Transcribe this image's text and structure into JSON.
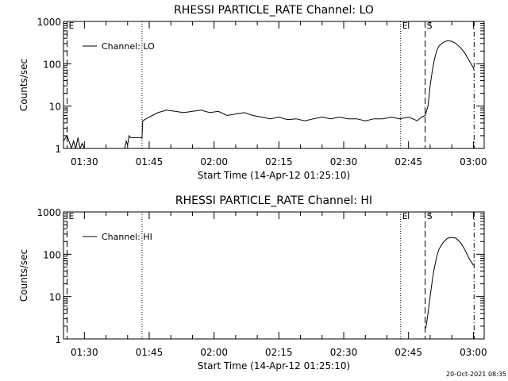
{
  "footer": {
    "timestamp": "20-Oct-2021 08:35"
  },
  "chart_data": [
    {
      "type": "line",
      "title": "RHESSI PARTICLE_RATE Channel: LO",
      "xlabel": "Start Time (14-Apr-12 01:25:10)",
      "ylabel": "Counts/sec",
      "y_scale": "log",
      "ylim": [
        1,
        1000
      ],
      "xlim": [
        "01:25:10",
        "03:02:30"
      ],
      "x_ticks": [
        "01:30",
        "01:45",
        "02:00",
        "02:15",
        "02:30",
        "02:45",
        "03:00"
      ],
      "y_ticks": [
        "1",
        "10",
        "100",
        "1000"
      ],
      "legend": {
        "label": "Channel: LO",
        "position": "top-left"
      },
      "markers": [
        {
          "label": "E",
          "time": "01:26:00",
          "style": "dashed"
        },
        {
          "label": "",
          "time": "01:43:20",
          "style": "dotted"
        },
        {
          "label": "E",
          "time": "02:43:10",
          "style": "dotted"
        },
        {
          "label": "S",
          "time": "02:48:50",
          "style": "dashed"
        },
        {
          "label": "",
          "time": "03:00:10",
          "style": "dashdot"
        }
      ],
      "series": [
        {
          "name": "Channel: LO",
          "x": [
            "01:25:10",
            "01:26:00",
            "01:27:00",
            "01:27:30",
            "01:28:00",
            "01:28:30",
            "01:29:00",
            "01:29:30",
            "01:30:00",
            "01:39:20",
            "01:39:40",
            "01:40:00",
            "01:40:20",
            "01:40:40",
            "01:41:00",
            "01:43:20",
            "01:43:30",
            "01:45:00",
            "01:47:00",
            "01:49:00",
            "01:51:00",
            "01:53:00",
            "01:55:00",
            "01:57:00",
            "01:59:00",
            "02:01:00",
            "02:03:00",
            "02:05:00",
            "02:07:00",
            "02:09:00",
            "02:11:00",
            "02:13:00",
            "02:15:00",
            "02:17:00",
            "02:19:00",
            "02:21:00",
            "02:23:00",
            "02:25:00",
            "02:27:00",
            "02:29:00",
            "02:31:00",
            "02:33:00",
            "02:35:00",
            "02:37:00",
            "02:39:00",
            "02:41:00",
            "02:43:00",
            "02:45:00",
            "02:46:00",
            "02:47:00",
            "02:48:00",
            "02:48:50",
            "02:49:30",
            "02:50:00",
            "02:50:30",
            "02:51:00",
            "02:51:30",
            "02:52:00",
            "02:53:00",
            "02:54:00",
            "02:55:00",
            "02:56:00",
            "02:57:00",
            "02:58:00",
            "02:59:00",
            "03:00:00",
            "03:00:10"
          ],
          "y": [
            1.5,
            2,
            1,
            1.5,
            1,
            1.8,
            1,
            1.3,
            1,
            1,
            1.5,
            1.2,
            2,
            1.8,
            1.8,
            1.8,
            4.5,
            5.5,
            7,
            8,
            7.5,
            7,
            7.5,
            8,
            7,
            7.5,
            6,
            6.5,
            7,
            6,
            5.5,
            5,
            5.5,
            4.8,
            5,
            4.5,
            5,
            5.5,
            5,
            5.5,
            5,
            5,
            4.5,
            5,
            5,
            5.5,
            5,
            5.5,
            5,
            4.5,
            5.5,
            6,
            10,
            30,
            70,
            130,
            200,
            260,
            320,
            350,
            340,
            300,
            240,
            180,
            120,
            80,
            70
          ]
        }
      ]
    },
    {
      "type": "line",
      "title": "RHESSI PARTICLE_RATE Channel: HI",
      "xlabel": "Start Time (14-Apr-12 01:25:10)",
      "ylabel": "Counts/sec",
      "y_scale": "log",
      "ylim": [
        1,
        1000
      ],
      "xlim": [
        "01:25:10",
        "03:02:30"
      ],
      "x_ticks": [
        "01:30",
        "01:45",
        "02:00",
        "02:15",
        "02:30",
        "02:45",
        "03:00"
      ],
      "y_ticks": [
        "1",
        "10",
        "100",
        "1000"
      ],
      "legend": {
        "label": "Channel: HI",
        "position": "top-left"
      },
      "markers": [
        {
          "label": "E",
          "time": "01:26:00",
          "style": "dashed"
        },
        {
          "label": "",
          "time": "01:43:20",
          "style": "dotted"
        },
        {
          "label": "E",
          "time": "02:43:10",
          "style": "dotted"
        },
        {
          "label": "S",
          "time": "02:48:50",
          "style": "dashed"
        },
        {
          "label": "",
          "time": "03:00:10",
          "style": "dashdot"
        }
      ],
      "series": [
        {
          "name": "Channel: HI",
          "x": [
            "02:49:00",
            "02:49:30",
            "02:50:00",
            "02:50:30",
            "02:51:00",
            "02:51:30",
            "02:52:00",
            "02:53:00",
            "02:54:00",
            "02:55:00",
            "02:56:00",
            "02:57:00",
            "02:58:00",
            "02:59:00",
            "03:00:00"
          ],
          "y": [
            1.8,
            4,
            10,
            25,
            50,
            85,
            130,
            190,
            240,
            250,
            240,
            190,
            130,
            80,
            55
          ]
        }
      ]
    }
  ]
}
